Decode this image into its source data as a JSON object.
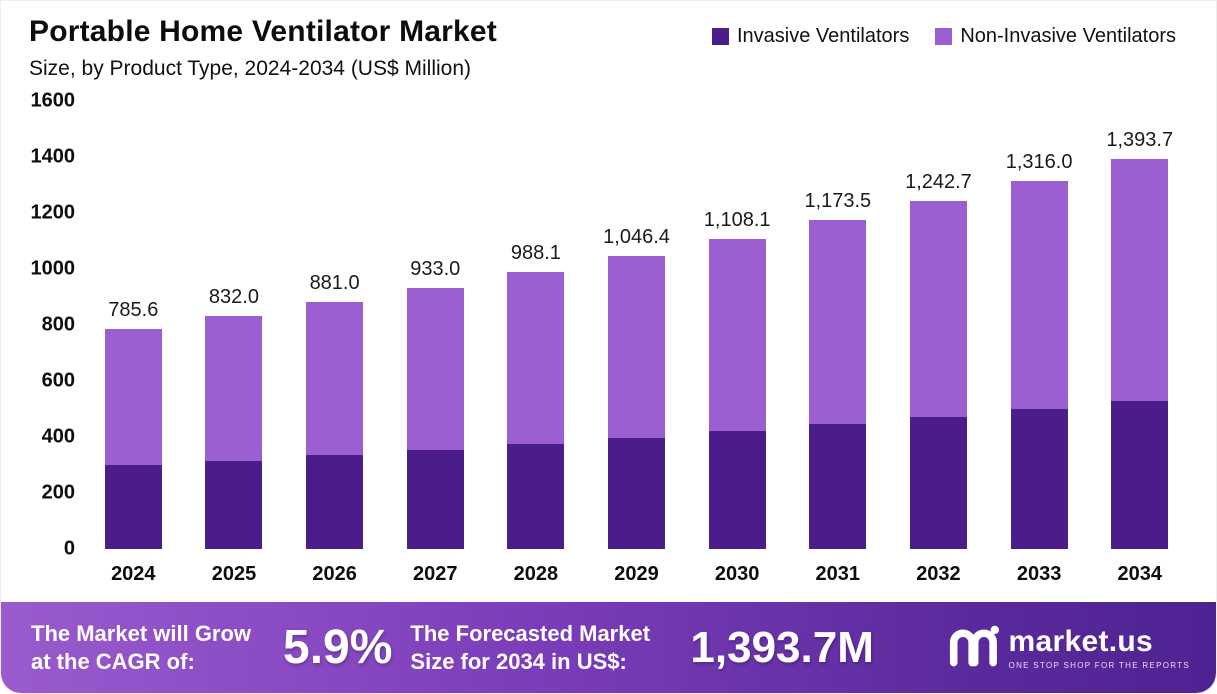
{
  "header": {
    "title": "Portable Home Ventilator Market",
    "subtitle": "Size, by Product Type, 2024-2034 (US$ Million)"
  },
  "legend": [
    {
      "label": "Invasive Ventilators",
      "color": "#4a1d88"
    },
    {
      "label": "Non-Invasive Ventilators",
      "color": "#9b5fd2"
    }
  ],
  "chart_data": {
    "type": "bar",
    "stacked": true,
    "title": "Portable Home Ventilator Market Size, by Product Type, 2024-2034 (US$ Million)",
    "categories": [
      "2024",
      "2025",
      "2026",
      "2027",
      "2028",
      "2029",
      "2030",
      "2031",
      "2032",
      "2033",
      "2034"
    ],
    "series": [
      {
        "name": "Invasive Ventilators",
        "color": "#4a1d88",
        "values": [
          300,
          316,
          334,
          354,
          375,
          396,
          420,
          445,
          471,
          499,
          530
        ]
      },
      {
        "name": "Non-Invasive Ventilators",
        "color": "#9b5fd2",
        "values": [
          485.6,
          516.0,
          547.0,
          579.0,
          613.1,
          650.4,
          688.1,
          728.5,
          771.7,
          817.0,
          863.7
        ]
      }
    ],
    "totals": [
      785.6,
      832.0,
      881.0,
      933.0,
      988.1,
      1046.4,
      1108.1,
      1173.5,
      1242.7,
      1316.0,
      1393.7
    ],
    "total_labels": [
      "785.6",
      "832.0",
      "881.0",
      "933.0",
      "988.1",
      "1,046.4",
      "1,108.1",
      "1,173.5",
      "1,242.7",
      "1,316.0",
      "1,393.7"
    ],
    "xlabel": "",
    "ylabel": "",
    "ylim": [
      0,
      1600
    ],
    "ytick_step": 200,
    "grid": false,
    "legend_position": "top-right"
  },
  "banner": {
    "cagr_label": "The Market will Grow at the CAGR of:",
    "cagr_value": "5.9%",
    "forecast_label": "The Forecasted Market Size for 2034 in US$:",
    "forecast_value": "1,393.7M",
    "logo_text": "market.us",
    "logo_tagline": "One Stop Shop For The Reports"
  }
}
